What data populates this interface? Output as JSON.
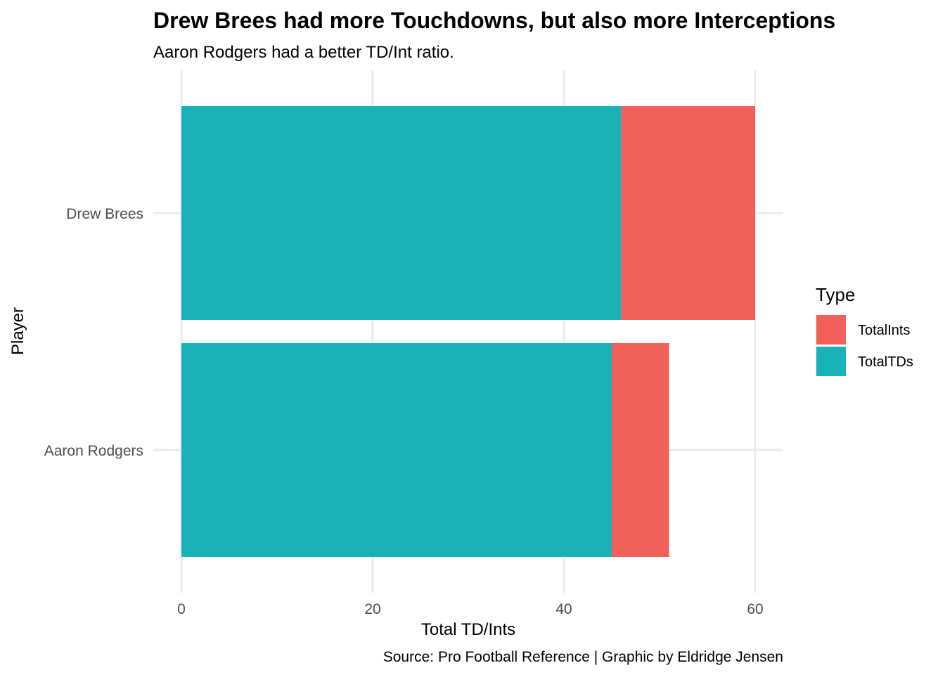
{
  "chart_data": {
    "type": "bar",
    "orientation": "horizontal",
    "stacked": true,
    "title": "Drew Brees had more Touchdowns, but also more Interceptions",
    "subtitle": "Aaron Rodgers had a better TD/Int ratio.",
    "xlabel": "Total TD/Ints",
    "ylabel": "Player",
    "caption": "Source: Pro Football Reference | Graphic by Eldridge Jensen",
    "categories": [
      "Drew Brees",
      "Aaron Rodgers"
    ],
    "xlim": [
      0,
      63
    ],
    "xticks": [
      0,
      20,
      40,
      60
    ],
    "grid": true,
    "legend": {
      "title": "Type",
      "placement": "right"
    },
    "series": [
      {
        "name": "TotalTDs",
        "color": "#19B3B7",
        "values": [
          46,
          45
        ]
      },
      {
        "name": "TotalInts",
        "color": "#F2605C",
        "values": [
          14,
          6
        ]
      }
    ],
    "legend_order": [
      "TotalInts",
      "TotalTDs"
    ]
  }
}
